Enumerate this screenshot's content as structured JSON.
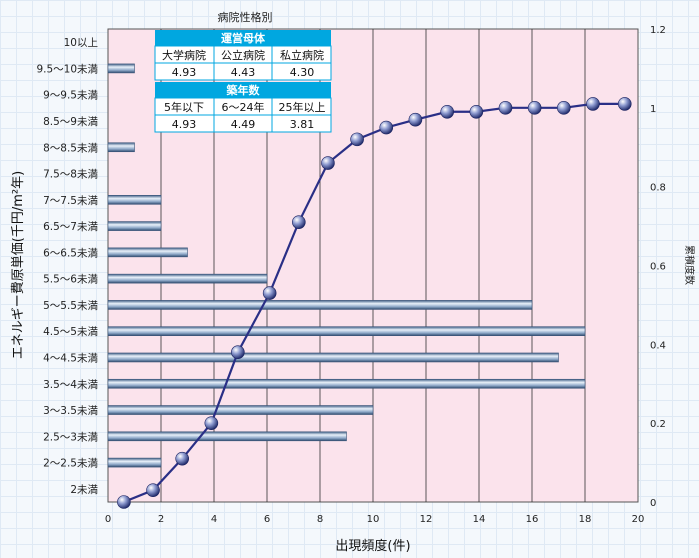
{
  "chart_data": {
    "type": "bar+line",
    "xlabel": "出現頻度(件)",
    "ylabel": "エネルギー費原単価(千円/m²年)",
    "y2label": "累積度数",
    "xlim": [
      0,
      20
    ],
    "x_ticks": [
      "0",
      "2",
      "4",
      "6",
      "8",
      "10",
      "12",
      "14",
      "16",
      "18",
      "20"
    ],
    "y2lim": [
      0,
      1.2
    ],
    "y2_ticks": [
      "0",
      "0.2",
      "0.4",
      "0.6",
      "0.8",
      "1",
      "1.2"
    ],
    "grid": true,
    "categories": [
      "2未満",
      "2～2.5未満",
      "2.5～3未満",
      "3～3.5未満",
      "3.5～4未満",
      "4～4.5未満",
      "4.5～5未満",
      "5～5.5未満",
      "5.5～6未満",
      "6～6.5未満",
      "6.5～7未満",
      "7～7.5未満",
      "7.5～8未満",
      "8～8.5未満",
      "8.5～9未満",
      "9～9.5未満",
      "9.5～10未満",
      "10以上"
    ],
    "bar_values": [
      0,
      2,
      9,
      10,
      18,
      17,
      18,
      16,
      6,
      3,
      2,
      2,
      0,
      1,
      0,
      0,
      1,
      0
    ],
    "cumulative": {
      "x": [
        0.6,
        1.7,
        2.8,
        3.9,
        4.9,
        6.1,
        7.2,
        8.3,
        9.4,
        10.5,
        11.6,
        12.8,
        13.9,
        15.0,
        16.1,
        17.2,
        18.3,
        19.5
      ],
      "y": [
        0.0,
        0.03,
        0.11,
        0.2,
        0.38,
        0.53,
        0.71,
        0.86,
        0.92,
        0.95,
        0.97,
        0.99,
        0.99,
        1.0,
        1.0,
        1.0,
        1.01,
        1.01
      ]
    }
  },
  "inset": {
    "title": "病院性格別",
    "group1": {
      "header": "運営母体",
      "labels": [
        "大学病院",
        "公立病院",
        "私立病院"
      ],
      "values": [
        "4.93",
        "4.43",
        "4.30"
      ]
    },
    "group2": {
      "header": "築年数",
      "labels": [
        "5年以下",
        "6～24年",
        "25年以上"
      ],
      "values": [
        "4.93",
        "4.49",
        "3.81"
      ]
    }
  },
  "colors": {
    "plot_bg": "#fbe3ec",
    "bar": "#6e8fb5",
    "line": "#2a2f86",
    "marker": "#4d5ba8",
    "table_header": "#00a7e0"
  }
}
